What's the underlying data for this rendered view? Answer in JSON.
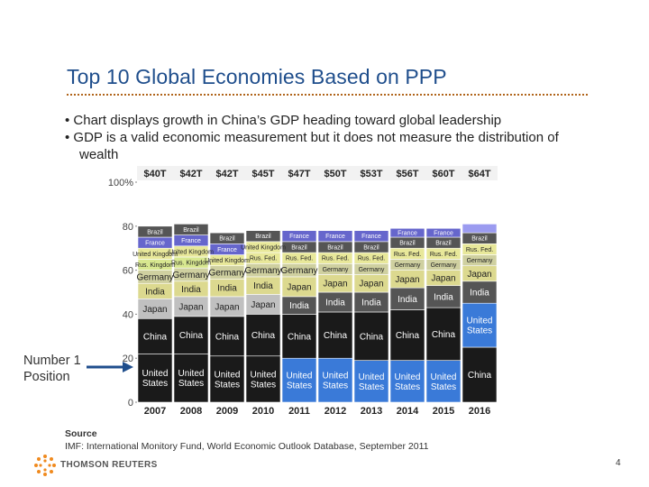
{
  "slide": {
    "title": "Top 10 Global Economies Based on PPP",
    "bullets": [
      "• Chart displays growth in China’s GDP heading toward global leadership",
      "• GDP is a valid economic measurement but it does not measure the distribution of",
      "wealth"
    ],
    "side_label_line1": "Number 1",
    "side_label_line2": "Position",
    "source_heading": "Source",
    "source_text": "IMF: International Monitory Fund, World Economic Outlook Database, September 2011",
    "logo_text": "THOMSON REUTERS",
    "page_number": "4"
  },
  "chart_data": {
    "type": "bar",
    "stacked": true,
    "percent": true,
    "categories": [
      "2007",
      "2008",
      "2009",
      "2010",
      "2011",
      "2012",
      "2013",
      "2014",
      "2015",
      "2016"
    ],
    "totals": [
      "$40T",
      "$42T",
      "$42T",
      "$45T",
      "$47T",
      "$50T",
      "$53T",
      "$56T",
      "$60T",
      "$64T"
    ],
    "ylim": [
      0,
      100
    ],
    "yticks": [
      "0",
      "20",
      "40",
      "60",
      "80",
      "100%"
    ],
    "segments": [
      [
        {
          "label": "United States",
          "value": 22,
          "color": "#1a1a1a"
        },
        {
          "label": "China",
          "value": 16,
          "color": "#1a1a1a"
        },
        {
          "label": "Japan",
          "value": 9,
          "color": "#c0c0c0"
        },
        {
          "label": "India",
          "value": 7,
          "color": "#dcd98f"
        },
        {
          "label": "Germany",
          "value": 6,
          "color": "#cfd0a0"
        },
        {
          "label": "Rus. Kingdom",
          "value": 5,
          "color": "#d8e890"
        },
        {
          "label": "United Kingdom",
          "value": 5,
          "color": "#e8e89a"
        },
        {
          "label": "France",
          "value": 5,
          "color": "#6666cc"
        },
        {
          "label": "Brazil",
          "value": 5,
          "color": "#555555"
        },
        {
          "label": "",
          "value": 20,
          "color": "#ffffff"
        }
      ],
      [
        {
          "label": "United States",
          "value": 22,
          "color": "#1a1a1a"
        },
        {
          "label": "China",
          "value": 17,
          "color": "#1a1a1a"
        },
        {
          "label": "Japan",
          "value": 9,
          "color": "#c0c0c0"
        },
        {
          "label": "India",
          "value": 7,
          "color": "#dcd98f"
        },
        {
          "label": "Germany",
          "value": 6,
          "color": "#cfd0a0"
        },
        {
          "label": "Rus. Kingdom",
          "value": 5,
          "color": "#d8e890"
        },
        {
          "label": "United Kingdom",
          "value": 5,
          "color": "#e8e89a"
        },
        {
          "label": "France",
          "value": 5,
          "color": "#6666cc"
        },
        {
          "label": "Brazil",
          "value": 5,
          "color": "#555555"
        },
        {
          "label": "",
          "value": 19,
          "color": "#ffffff"
        }
      ],
      [
        {
          "label": "United States",
          "value": 21,
          "color": "#1a1a1a"
        },
        {
          "label": "China",
          "value": 18,
          "color": "#1a1a1a"
        },
        {
          "label": "Japan",
          "value": 9,
          "color": "#c0c0c0"
        },
        {
          "label": "India",
          "value": 8,
          "color": "#dcd98f"
        },
        {
          "label": "Germany",
          "value": 6,
          "color": "#cfd0a0"
        },
        {
          "label": "United Kingdom",
          "value": 5,
          "color": "#e8e89a"
        },
        {
          "label": "France",
          "value": 5,
          "color": "#6666cc"
        },
        {
          "label": "Brazil",
          "value": 5,
          "color": "#555555"
        },
        {
          "label": "",
          "value": 23,
          "color": "#ffffff"
        }
      ],
      [
        {
          "label": "United States",
          "value": 21,
          "color": "#1a1a1a"
        },
        {
          "label": "China",
          "value": 19,
          "color": "#1a1a1a"
        },
        {
          "label": "Japan",
          "value": 9,
          "color": "#c0c0c0"
        },
        {
          "label": "India",
          "value": 8,
          "color": "#dcd98f"
        },
        {
          "label": "Germany",
          "value": 6,
          "color": "#cfd0a0"
        },
        {
          "label": "Rus. Fed.",
          "value": 5,
          "color": "#e8e89a"
        },
        {
          "label": "United Kingdom",
          "value": 5,
          "color": "#e8e89a"
        },
        {
          "label": "Brazil",
          "value": 5,
          "color": "#555555"
        },
        {
          "label": "",
          "value": 22,
          "color": "#ffffff"
        }
      ],
      [
        {
          "label": "United States",
          "value": 20,
          "color": "#3a7ad8"
        },
        {
          "label": "China",
          "value": 20,
          "color": "#1a1a1a"
        },
        {
          "label": "India",
          "value": 8,
          "color": "#555555"
        },
        {
          "label": "Japan",
          "value": 9,
          "color": "#dcd98f"
        },
        {
          "label": "Germany",
          "value": 6,
          "color": "#cfd0a0"
        },
        {
          "label": "Rus. Fed.",
          "value": 5,
          "color": "#e8e89a"
        },
        {
          "label": "Brazil",
          "value": 5,
          "color": "#555555"
        },
        {
          "label": "France",
          "value": 5,
          "color": "#6666cc"
        },
        {
          "label": "",
          "value": 22,
          "color": "#ffffff"
        }
      ],
      [
        {
          "label": "United States",
          "value": 20,
          "color": "#3a7ad8"
        },
        {
          "label": "China",
          "value": 21,
          "color": "#1a1a1a"
        },
        {
          "label": "India",
          "value": 9,
          "color": "#555555"
        },
        {
          "label": "Japan",
          "value": 8,
          "color": "#dcd98f"
        },
        {
          "label": "Germany",
          "value": 5,
          "color": "#cfd0a0"
        },
        {
          "label": "Rus. Fed.",
          "value": 5,
          "color": "#e8e89a"
        },
        {
          "label": "Brazil",
          "value": 5,
          "color": "#555555"
        },
        {
          "label": "France",
          "value": 5,
          "color": "#6666cc"
        },
        {
          "label": "",
          "value": 22,
          "color": "#ffffff"
        }
      ],
      [
        {
          "label": "United States",
          "value": 19,
          "color": "#3a7ad8"
        },
        {
          "label": "China",
          "value": 22,
          "color": "#1a1a1a"
        },
        {
          "label": "India",
          "value": 9,
          "color": "#555555"
        },
        {
          "label": "Japan",
          "value": 8,
          "color": "#dcd98f"
        },
        {
          "label": "Germany",
          "value": 5,
          "color": "#cfd0a0"
        },
        {
          "label": "Rus. Fed.",
          "value": 5,
          "color": "#e8e89a"
        },
        {
          "label": "Brazil",
          "value": 5,
          "color": "#555555"
        },
        {
          "label": "France",
          "value": 5,
          "color": "#6666cc"
        },
        {
          "label": "",
          "value": 22,
          "color": "#ffffff"
        }
      ],
      [
        {
          "label": "United States",
          "value": 19,
          "color": "#3a7ad8"
        },
        {
          "label": "China",
          "value": 23,
          "color": "#1a1a1a"
        },
        {
          "label": "India",
          "value": 10,
          "color": "#555555"
        },
        {
          "label": "Japan",
          "value": 8,
          "color": "#dcd98f"
        },
        {
          "label": "Germany",
          "value": 5,
          "color": "#cfd0a0"
        },
        {
          "label": "Rus. Fed.",
          "value": 5,
          "color": "#e8e89a"
        },
        {
          "label": "Brazil",
          "value": 5,
          "color": "#555555"
        },
        {
          "label": "France",
          "value": 4,
          "color": "#6666cc"
        },
        {
          "label": "",
          "value": 21,
          "color": "#ffffff"
        }
      ],
      [
        {
          "label": "United States",
          "value": 19,
          "color": "#3a7ad8"
        },
        {
          "label": "China",
          "value": 24,
          "color": "#1a1a1a"
        },
        {
          "label": "India",
          "value": 10,
          "color": "#555555"
        },
        {
          "label": "Japan",
          "value": 7,
          "color": "#dcd98f"
        },
        {
          "label": "Germany",
          "value": 5,
          "color": "#cfd0a0"
        },
        {
          "label": "Rus. Fed.",
          "value": 5,
          "color": "#e8e89a"
        },
        {
          "label": "Brazil",
          "value": 5,
          "color": "#555555"
        },
        {
          "label": "France",
          "value": 4,
          "color": "#6666cc"
        },
        {
          "label": "",
          "value": 21,
          "color": "#ffffff"
        }
      ],
      [
        {
          "label": "China",
          "value": 25,
          "color": "#1a1a1a"
        },
        {
          "label": "United States",
          "value": 20,
          "color": "#3a7ad8"
        },
        {
          "label": "India",
          "value": 10,
          "color": "#555555"
        },
        {
          "label": "Japan",
          "value": 7,
          "color": "#dcd98f"
        },
        {
          "label": "Germany",
          "value": 5,
          "color": "#cfd0a0"
        },
        {
          "label": "Rus. Fed.",
          "value": 5,
          "color": "#e8e89a"
        },
        {
          "label": "Brazil",
          "value": 5,
          "color": "#555555"
        },
        {
          "label": "",
          "value": 4,
          "color": "#9b9bf0"
        },
        {
          "label": "",
          "value": 19,
          "color": "#ffffff"
        }
      ]
    ]
  }
}
